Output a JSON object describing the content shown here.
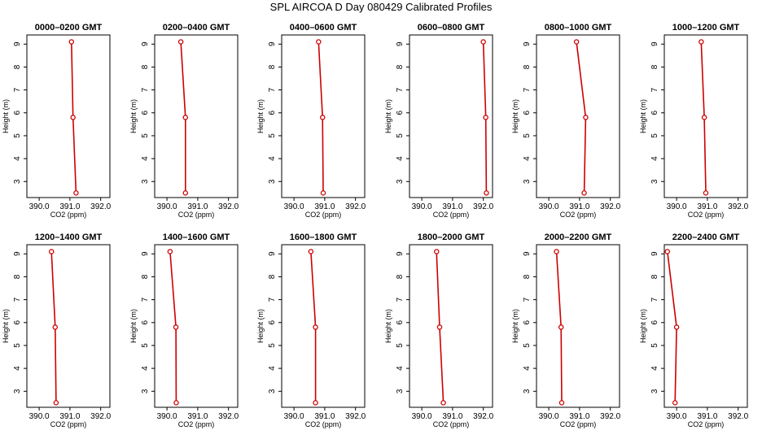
{
  "title": "SPL AIRCOA D  Day 080429  Calibrated Profiles",
  "chart_data": {
    "type": "line",
    "xlabel": "CO2 (ppm)",
    "ylabel": "Height (m)",
    "xlim": [
      389.6,
      392.3
    ],
    "ylim": [
      2.3,
      9.4
    ],
    "xticks": [
      "390.0",
      "391.0",
      "392.0"
    ],
    "yticks": [
      "3",
      "4",
      "5",
      "6",
      "7",
      "8",
      "9"
    ],
    "line_color": "#cc0000",
    "panels": [
      {
        "title": "0000–0200 GMT",
        "points": [
          {
            "x": 391.2,
            "y": 2.5
          },
          {
            "x": 391.1,
            "y": 5.8
          },
          {
            "x": 391.05,
            "y": 9.1
          }
        ]
      },
      {
        "title": "0200–0400 GMT",
        "points": [
          {
            "x": 390.6,
            "y": 2.5
          },
          {
            "x": 390.6,
            "y": 5.8
          },
          {
            "x": 390.45,
            "y": 9.1
          }
        ]
      },
      {
        "title": "0400–0600 GMT",
        "points": [
          {
            "x": 390.95,
            "y": 2.5
          },
          {
            "x": 390.93,
            "y": 5.8
          },
          {
            "x": 390.8,
            "y": 9.1
          }
        ]
      },
      {
        "title": "0600–0800 GMT",
        "points": [
          {
            "x": 392.1,
            "y": 2.5
          },
          {
            "x": 392.08,
            "y": 5.8
          },
          {
            "x": 392.0,
            "y": 9.1
          }
        ]
      },
      {
        "title": "0800–1000 GMT",
        "points": [
          {
            "x": 391.15,
            "y": 2.5
          },
          {
            "x": 391.2,
            "y": 5.8
          },
          {
            "x": 390.9,
            "y": 9.1
          }
        ]
      },
      {
        "title": "1000–1200 GMT",
        "points": [
          {
            "x": 390.95,
            "y": 2.5
          },
          {
            "x": 390.9,
            "y": 5.8
          },
          {
            "x": 390.8,
            "y": 9.1
          }
        ]
      },
      {
        "title": "1200–1400 GMT",
        "points": [
          {
            "x": 390.55,
            "y": 2.5
          },
          {
            "x": 390.52,
            "y": 5.8
          },
          {
            "x": 390.4,
            "y": 9.1
          }
        ]
      },
      {
        "title": "1400–1600 GMT",
        "points": [
          {
            "x": 390.3,
            "y": 2.5
          },
          {
            "x": 390.29,
            "y": 5.8
          },
          {
            "x": 390.1,
            "y": 9.1
          }
        ]
      },
      {
        "title": "1600–1800 GMT",
        "points": [
          {
            "x": 390.7,
            "y": 2.5
          },
          {
            "x": 390.7,
            "y": 5.8
          },
          {
            "x": 390.55,
            "y": 9.1
          }
        ]
      },
      {
        "title": "1800–2000 GMT",
        "points": [
          {
            "x": 390.7,
            "y": 2.5
          },
          {
            "x": 390.58,
            "y": 5.8
          },
          {
            "x": 390.48,
            "y": 9.1
          }
        ]
      },
      {
        "title": "2000–2200 GMT",
        "points": [
          {
            "x": 390.42,
            "y": 2.5
          },
          {
            "x": 390.4,
            "y": 5.8
          },
          {
            "x": 390.25,
            "y": 9.1
          }
        ]
      },
      {
        "title": "2200–2400 GMT",
        "points": [
          {
            "x": 389.95,
            "y": 2.5
          },
          {
            "x": 390.0,
            "y": 5.8
          },
          {
            "x": 389.7,
            "y": 9.1
          }
        ]
      }
    ]
  }
}
